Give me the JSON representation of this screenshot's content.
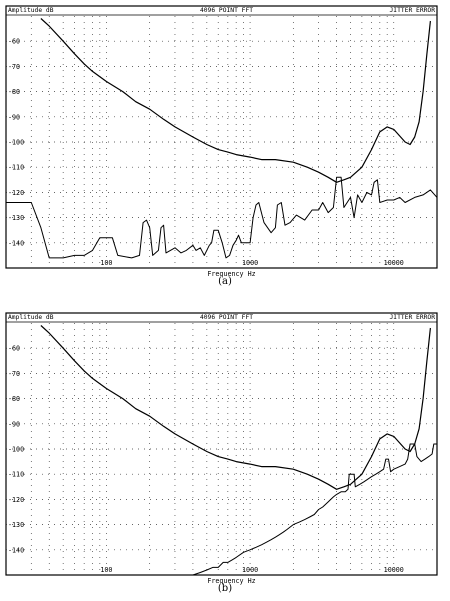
{
  "chart_data": [
    {
      "type": "line",
      "caption": "(a)",
      "title": "4096 POINT FFT",
      "header_left": "Amplitude dB",
      "header_right": "JITTER ERROR",
      "xlabel": "Frequency Hz",
      "ylabel": "Amplitude dB",
      "x_scale": "log",
      "xlim": [
        20,
        20000
      ],
      "ylim": [
        -150,
        -50
      ],
      "x_ticks": [
        100,
        1000,
        10000
      ],
      "x_tick_labels": [
        "100",
        "1000",
        "10000"
      ],
      "y_ticks": [
        -140,
        -130,
        -120,
        -110,
        -100,
        -90,
        -80,
        -70,
        -60
      ],
      "y_tick_labels": [
        "-140",
        "-130",
        "-120",
        "-110",
        "-100",
        "-90",
        "-80",
        "-70",
        "-60"
      ],
      "grid": "dotted",
      "series": [
        {
          "points": [
            [
              20,
              null
            ],
            [
              35,
              -51
            ],
            [
              40,
              -54
            ],
            [
              50,
              -60
            ],
            [
              60,
              -65
            ],
            [
              70,
              -69
            ],
            [
              80,
              -72
            ],
            [
              100,
              -76
            ],
            [
              130,
              -80
            ],
            [
              160,
              -84
            ],
            [
              200,
              -87
            ],
            [
              250,
              -91
            ],
            [
              300,
              -94
            ],
            [
              400,
              -98
            ],
            [
              500,
              -101
            ],
            [
              600,
              -103
            ],
            [
              700,
              -104
            ],
            [
              800,
              -105
            ],
            [
              1000,
              -106
            ],
            [
              1200,
              -107
            ],
            [
              1500,
              -107
            ],
            [
              2000,
              -108
            ],
            [
              2500,
              -110
            ],
            [
              3000,
              -112
            ],
            [
              3500,
              -114
            ],
            [
              4000,
              -116
            ],
            [
              4500,
              -115
            ],
            [
              5000,
              -114
            ],
            [
              6000,
              -110
            ],
            [
              7000,
              -103
            ],
            [
              8000,
              -96
            ],
            [
              9000,
              -94
            ],
            [
              10000,
              -95
            ],
            [
              12000,
              -100
            ],
            [
              13000,
              -101
            ],
            [
              14000,
              -98
            ],
            [
              15000,
              -92
            ],
            [
              16000,
              -80
            ],
            [
              17000,
              -65
            ],
            [
              18000,
              -52
            ]
          ]
        },
        {
          "points": [
            [
              20,
              -124
            ],
            [
              30,
              -124
            ],
            [
              35,
              -134
            ],
            [
              40,
              -146
            ],
            [
              50,
              -146
            ],
            [
              60,
              -145
            ],
            [
              70,
              -145
            ],
            [
              80,
              -143
            ],
            [
              90,
              -138
            ],
            [
              110,
              -138
            ],
            [
              120,
              -145
            ],
            [
              150,
              -146
            ],
            [
              170,
              -145
            ],
            [
              180,
              -132
            ],
            [
              190,
              -131
            ],
            [
              200,
              -134
            ],
            [
              210,
              -145
            ],
            [
              230,
              -143
            ],
            [
              240,
              -134
            ],
            [
              250,
              -133
            ],
            [
              260,
              -144
            ],
            [
              300,
              -142
            ],
            [
              330,
              -144
            ],
            [
              360,
              -143
            ],
            [
              400,
              -141
            ],
            [
              420,
              -143
            ],
            [
              450,
              -142
            ],
            [
              480,
              -145
            ],
            [
              520,
              -141
            ],
            [
              540,
              -140
            ],
            [
              560,
              -135
            ],
            [
              600,
              -135
            ],
            [
              640,
              -140
            ],
            [
              680,
              -146
            ],
            [
              720,
              -145
            ],
            [
              760,
              -141
            ],
            [
              800,
              -139
            ],
            [
              830,
              -137
            ],
            [
              870,
              -140
            ],
            [
              900,
              -140
            ],
            [
              1000,
              -140
            ],
            [
              1050,
              -130
            ],
            [
              1100,
              -125
            ],
            [
              1150,
              -124
            ],
            [
              1250,
              -132
            ],
            [
              1400,
              -136
            ],
            [
              1500,
              -134
            ],
            [
              1550,
              -125
            ],
            [
              1650,
              -124
            ],
            [
              1750,
              -133
            ],
            [
              1900,
              -132
            ],
            [
              2100,
              -129
            ],
            [
              2400,
              -131
            ],
            [
              2700,
              -127
            ],
            [
              3000,
              -127
            ],
            [
              3200,
              -124
            ],
            [
              3500,
              -128
            ],
            [
              3800,
              -126
            ],
            [
              4000,
              -114
            ],
            [
              4300,
              -114
            ],
            [
              4500,
              -126
            ],
            [
              5000,
              -122
            ],
            [
              5300,
              -130
            ],
            [
              5600,
              -121
            ],
            [
              6000,
              -124
            ],
            [
              6500,
              -120
            ],
            [
              7000,
              -121
            ],
            [
              7300,
              -116
            ],
            [
              7700,
              -115
            ],
            [
              8000,
              -124
            ],
            [
              9000,
              -123
            ],
            [
              10000,
              -123
            ],
            [
              11000,
              -122
            ],
            [
              12000,
              -124
            ],
            [
              14000,
              -122
            ],
            [
              16000,
              -121
            ],
            [
              18000,
              -119
            ],
            [
              20000,
              -122
            ]
          ]
        }
      ]
    },
    {
      "type": "line",
      "caption": "(b)",
      "title": "4096 POINT FFT",
      "header_left": "Amplitude dB",
      "header_right": "JITTER ERROR",
      "xlabel": "Frequency Hz",
      "ylabel": "Amplitude dB",
      "x_scale": "log",
      "xlim": [
        20,
        20000
      ],
      "ylim": [
        -150,
        -50
      ],
      "x_ticks": [
        100,
        1000,
        10000
      ],
      "x_tick_labels": [
        "100",
        "1000",
        "10000"
      ],
      "y_ticks": [
        -140,
        -130,
        -120,
        -110,
        -100,
        -90,
        -80,
        -70,
        -60
      ],
      "y_tick_labels": [
        "-140",
        "-130",
        "-120",
        "-110",
        "-100",
        "-90",
        "-80",
        "-70",
        "-60"
      ],
      "grid": "dotted",
      "series": [
        {
          "points": [
            [
              20,
              null
            ],
            [
              35,
              -51
            ],
            [
              40,
              -54
            ],
            [
              50,
              -60
            ],
            [
              60,
              -65
            ],
            [
              70,
              -69
            ],
            [
              80,
              -72
            ],
            [
              100,
              -76
            ],
            [
              130,
              -80
            ],
            [
              160,
              -84
            ],
            [
              200,
              -87
            ],
            [
              250,
              -91
            ],
            [
              300,
              -94
            ],
            [
              400,
              -98
            ],
            [
              500,
              -101
            ],
            [
              600,
              -103
            ],
            [
              700,
              -104
            ],
            [
              800,
              -105
            ],
            [
              1000,
              -106
            ],
            [
              1200,
              -107
            ],
            [
              1500,
              -107
            ],
            [
              2000,
              -108
            ],
            [
              2500,
              -110
            ],
            [
              3000,
              -112
            ],
            [
              3500,
              -114
            ],
            [
              4000,
              -116
            ],
            [
              4500,
              -115
            ],
            [
              5000,
              -114
            ],
            [
              6000,
              -110
            ],
            [
              7000,
              -103
            ],
            [
              8000,
              -96
            ],
            [
              9000,
              -94
            ],
            [
              10000,
              -95
            ],
            [
              12000,
              -100
            ],
            [
              13000,
              -101
            ],
            [
              14000,
              -98
            ],
            [
              15000,
              -92
            ],
            [
              16000,
              -80
            ],
            [
              17000,
              -65
            ],
            [
              18000,
              -52
            ]
          ]
        },
        {
          "points": [
            [
              400,
              -150
            ],
            [
              450,
              -149
            ],
            [
              500,
              -148
            ],
            [
              550,
              -147
            ],
            [
              600,
              -147
            ],
            [
              650,
              -145
            ],
            [
              700,
              -145
            ],
            [
              750,
              -144
            ],
            [
              800,
              -143
            ],
            [
              900,
              -141
            ],
            [
              1000,
              -140
            ],
            [
              1100,
              -139
            ],
            [
              1200,
              -138
            ],
            [
              1300,
              -137
            ],
            [
              1400,
              -136
            ],
            [
              1500,
              -135
            ],
            [
              1600,
              -134
            ],
            [
              1700,
              -133
            ],
            [
              1800,
              -132
            ],
            [
              2000,
              -130
            ],
            [
              2200,
              -129
            ],
            [
              2400,
              -128
            ],
            [
              2600,
              -127
            ],
            [
              2800,
              -126
            ],
            [
              3000,
              -124
            ],
            [
              3200,
              -123
            ],
            [
              3500,
              -121
            ],
            [
              3800,
              -119
            ],
            [
              4000,
              -118
            ],
            [
              4300,
              -117
            ],
            [
              4600,
              -117
            ],
            [
              4800,
              -116
            ],
            [
              4900,
              -110
            ],
            [
              5300,
              -110
            ],
            [
              5400,
              -115
            ],
            [
              5800,
              -114
            ],
            [
              6200,
              -113
            ],
            [
              6600,
              -112
            ],
            [
              7000,
              -111
            ],
            [
              7500,
              -110
            ],
            [
              8000,
              -109
            ],
            [
              8500,
              -108
            ],
            [
              8800,
              -104
            ],
            [
              9200,
              -104
            ],
            [
              9500,
              -109
            ],
            [
              10000,
              -108
            ],
            [
              11000,
              -107
            ],
            [
              12000,
              -106
            ],
            [
              12500,
              -104
            ],
            [
              13000,
              -98
            ],
            [
              14000,
              -98
            ],
            [
              14500,
              -103
            ],
            [
              15500,
              -105
            ],
            [
              16500,
              -104
            ],
            [
              17500,
              -103
            ],
            [
              18500,
              -102
            ],
            [
              19000,
              -98
            ],
            [
              20000,
              -98
            ]
          ]
        }
      ]
    }
  ]
}
